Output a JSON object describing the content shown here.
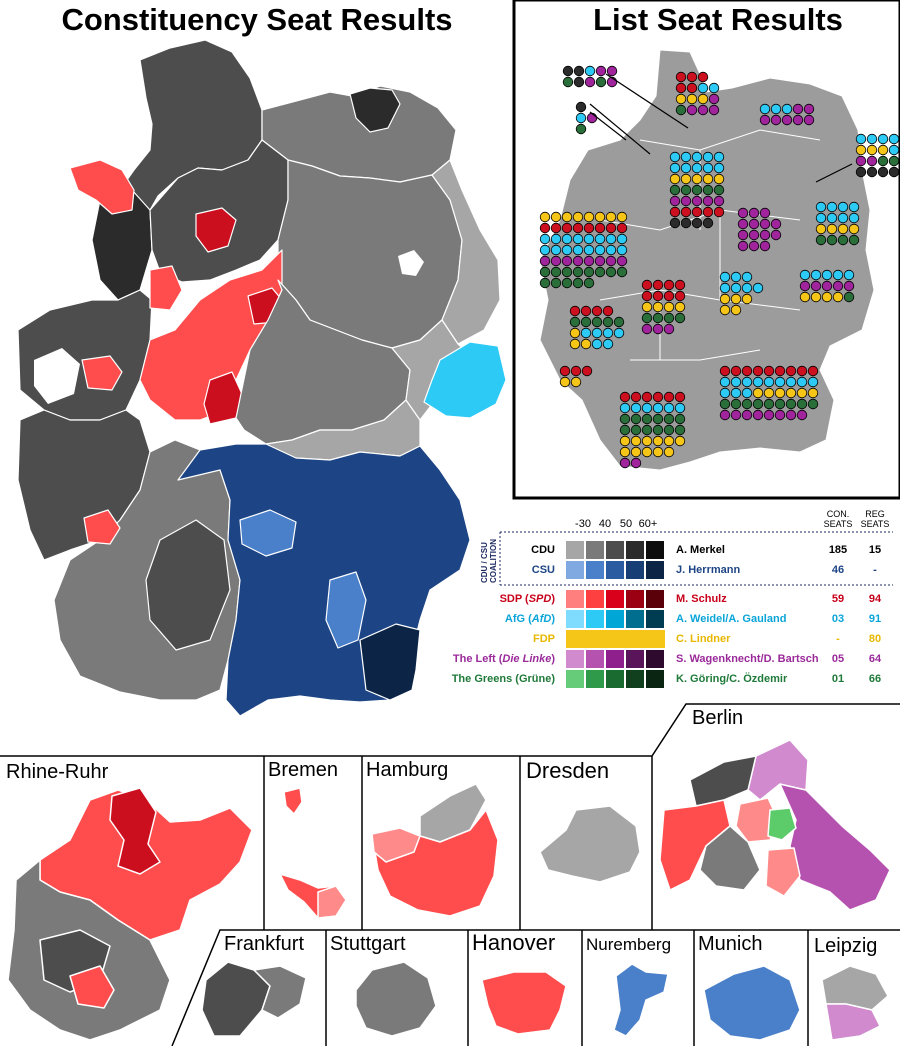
{
  "titles": {
    "constituency": "Constituency Seat Results",
    "list": "List Seat Results"
  },
  "legend": {
    "scale_labels": [
      "-30",
      "40",
      "50",
      "60+"
    ],
    "col_con": [
      "CON.",
      "SEATS"
    ],
    "col_reg": [
      "REG",
      "SEATS"
    ],
    "coalition_label": [
      "CDU / CSU",
      "COALITION"
    ],
    "parties": [
      {
        "name": "CDU",
        "leader": "A. Merkel",
        "con": "185",
        "reg": "15",
        "name_color": "#000000",
        "leader_color": "#000000",
        "num_color": "#000000",
        "shades": [
          "#a6a6a6",
          "#7a7a7a",
          "#4d4d4d",
          "#2b2b2b",
          "#0d0d0d"
        ]
      },
      {
        "name": "CSU",
        "leader": "J. Herrmann",
        "con": "46",
        "reg": "-",
        "name_color": "#1d4585",
        "leader_color": "#1d4585",
        "num_color": "#1d4585",
        "shades": [
          "#7fa9e0",
          "#4a7fc9",
          "#2a5aa0",
          "#173f75",
          "#0c2547"
        ]
      },
      {
        "name_parts": [
          {
            "t": "SDP (",
            "i": false
          },
          {
            "t": "SPD",
            "i": true
          },
          {
            "t": ")",
            "i": false
          }
        ],
        "name": "SDP (SPD)",
        "leader": "M. Schulz",
        "con": "59",
        "reg": "94",
        "name_color": "#c8001a",
        "leader_color": "#c8001a",
        "num_color": "#c8001a",
        "shades": [
          "#ff7f7f",
          "#ff4040",
          "#d9001c",
          "#9a0012",
          "#5a0009"
        ]
      },
      {
        "name_parts": [
          {
            "t": "AfG (",
            "i": false
          },
          {
            "t": "AfD",
            "i": true
          },
          {
            "t": ")",
            "i": false
          }
        ],
        "name": "AfG (AfD)",
        "leader": "A. Weidel/A. Gauland",
        "con": "03",
        "reg": "91",
        "name_color": "#0aa5d8",
        "leader_color": "#0aa5d8",
        "num_color": "#0aa5d8",
        "shades": [
          "#7fdcff",
          "#2ccaf5",
          "#00a6d6",
          "#006e8f",
          "#003d52"
        ]
      },
      {
        "name": "FDP",
        "leader": "C. Lindner",
        "con": "-",
        "reg": "80",
        "name_color": "#e8b800",
        "leader_color": "#e8b800",
        "num_color": "#e8b800",
        "shades": [
          "#f5c518"
        ]
      },
      {
        "name_parts": [
          {
            "t": "The Left (",
            "i": false
          },
          {
            "t": "Die Linke",
            "i": true
          },
          {
            "t": ")",
            "i": false
          }
        ],
        "name": "The Left (Die Linke)",
        "leader": "S. Wagenknecht/D. Bartsch",
        "con": "05",
        "reg": "64",
        "name_color": "#9a2a9a",
        "leader_color": "#9a2a9a",
        "num_color": "#9a2a9a",
        "shades": [
          "#d08acd",
          "#b552b0",
          "#8e1f8c",
          "#5a1459",
          "#2e0a2e"
        ]
      },
      {
        "name": "The Greens (Grüne)",
        "leader": "K. Göring/C. Özdemir",
        "con": "01",
        "reg": "66",
        "name_color": "#1f7a3a",
        "leader_color": "#1f7a3a",
        "num_color": "#1f7a3a",
        "shades": [
          "#66cc7a",
          "#2f9a4a",
          "#1a6b30",
          "#11401e",
          "#0a2612"
        ]
      }
    ]
  },
  "cities": [
    "Rhine-Ruhr",
    "Bremen",
    "Hamburg",
    "Dresden",
    "Berlin",
    "Frankfurt",
    "Stuttgart",
    "Hanover",
    "Nuremberg",
    "Munich",
    "Leipzig"
  ],
  "colors": {
    "cdu1": "#a6a6a6",
    "cdu2": "#7a7a7a",
    "cdu3": "#4d4d4d",
    "cdu4": "#2b2b2b",
    "csu": "#1d4585",
    "csu_light": "#4a7fc9",
    "csu_dark": "#0c2547",
    "spd": "#ff4c4c",
    "spd_dark": "#cc0f1f",
    "spd_light": "#ff8a8a",
    "afd": "#2ccaf5",
    "fdp": "#f5c518",
    "left": "#b552b0",
    "left_light": "#d08acd",
    "green": "#5ccc6a",
    "dot_green": "#2a6e3a",
    "list_grey": "#9c9c9c"
  }
}
